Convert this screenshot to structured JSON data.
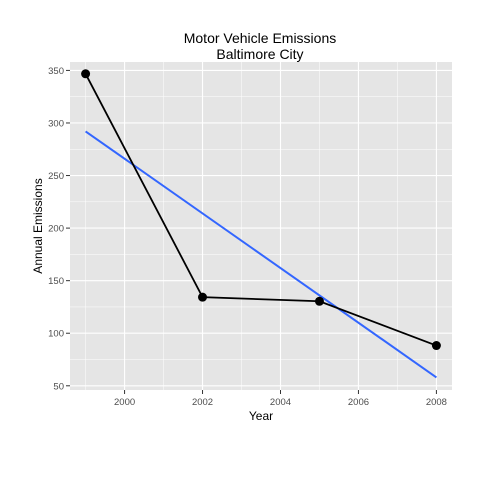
{
  "chart_data": {
    "type": "line",
    "title": "Motor Vehicle Emissions",
    "subtitle": "Baltimore City",
    "xlabel": "Year",
    "ylabel": "Annual Emissions",
    "xlim": [
      1998.6,
      2008.4
    ],
    "ylim": [
      46,
      358
    ],
    "x_ticks": [
      2000,
      2002,
      2004,
      2006,
      2008
    ],
    "y_ticks": [
      50,
      100,
      150,
      200,
      250,
      300,
      350
    ],
    "grid": true,
    "legend": "none",
    "series": [
      {
        "x": [
          1999,
          2002,
          2005,
          2008
        ],
        "values": [
          346.8,
          134.3,
          130.4,
          88.3
        ],
        "color": "#000000",
        "markers": true
      }
    ],
    "trend_line": {
      "x": [
        1999,
        2008
      ],
      "values": [
        292,
        58
      ],
      "color": "#3366ff"
    },
    "panel_background": "#e5e5e5",
    "grid_color": "#ffffff"
  }
}
